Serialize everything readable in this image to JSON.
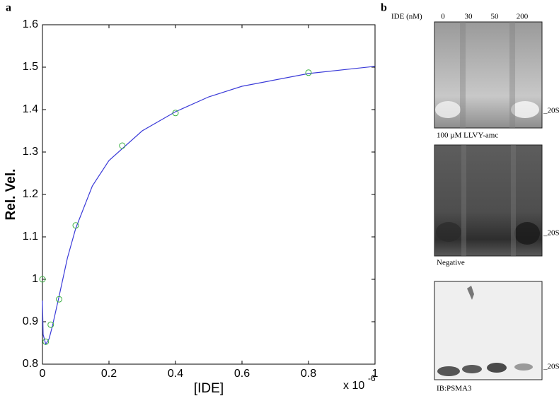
{
  "chart_data": {
    "type": "scatter",
    "panel_label": "a",
    "xlabel": "[IDE]",
    "ylabel": "Rel. Vel.",
    "x_multiplier": "x 10",
    "x_exponent": "-6",
    "points": {
      "color": "#3cb043",
      "x": [
        0,
        0.01,
        0.025,
        0.05,
        0.1,
        0.24,
        0.4,
        0.8
      ],
      "values": [
        1.0,
        0.853,
        0.893,
        0.953,
        1.127,
        1.315,
        1.392,
        1.487
      ]
    },
    "fit": {
      "color": "#3a3ad8",
      "x": [
        0,
        0.002,
        0.01,
        0.02,
        0.03,
        0.05,
        0.075,
        0.1,
        0.15,
        0.2,
        0.3,
        0.4,
        0.5,
        0.6,
        0.8,
        1.0
      ],
      "values": [
        0.95,
        0.87,
        0.847,
        0.86,
        0.89,
        0.96,
        1.05,
        1.12,
        1.22,
        1.28,
        1.35,
        1.395,
        1.43,
        1.455,
        1.485,
        1.502
      ]
    },
    "xlim": [
      0,
      1
    ],
    "xticks": [
      0,
      0.2,
      0.4,
      0.6,
      0.8,
      1
    ],
    "ylim": [
      0.8,
      1.6
    ],
    "yticks": [
      0.8,
      0.9,
      1,
      1.1,
      1.2,
      1.3,
      1.4,
      1.5,
      1.6
    ]
  },
  "panel_b": {
    "panel_label": "b",
    "lane_title": "IDE (nM)",
    "lanes": [
      0,
      30,
      50,
      200
    ],
    "gels": [
      {
        "band": "_20S",
        "caption": "100 µM LLVY-amc"
      },
      {
        "band": "_20S",
        "caption": "Negative"
      },
      {
        "band": "_20S",
        "caption": "IB:PSMA3"
      }
    ]
  }
}
